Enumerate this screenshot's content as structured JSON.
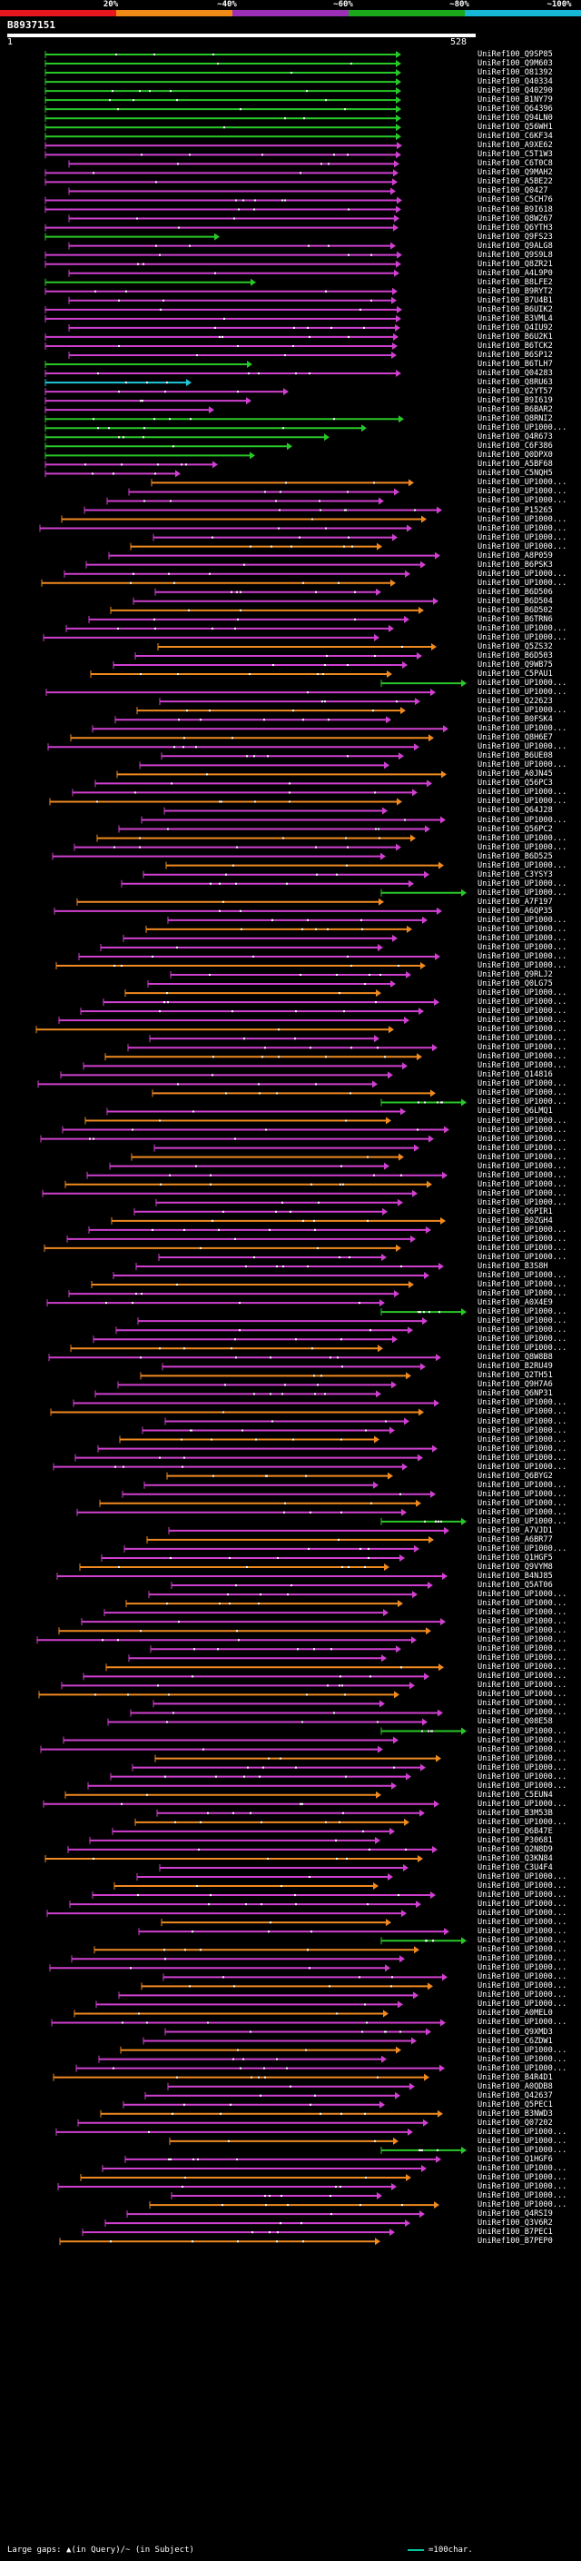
{
  "identity_scale": {
    "labels": [
      "20%",
      "~40%",
      "~60%",
      "~80%",
      "~100%"
    ],
    "segments": [
      {
        "color": "#e8171f",
        "fraction": 0.2
      },
      {
        "color": "#f08a17",
        "fraction": 0.2
      },
      {
        "color": "#9b2fb5",
        "fraction": 0.2
      },
      {
        "color": "#1ba81b",
        "fraction": 0.2
      },
      {
        "color": "#17b8d6",
        "fraction": 0.2
      }
    ]
  },
  "query": {
    "name": "B8937151",
    "start_label": "1",
    "end_label": "528",
    "length": 528
  },
  "colors": {
    "green": "#28c828",
    "magenta": "#d040d0",
    "orange": "#f08a20",
    "cyan": "#20c8d8",
    "marker": "#ffffff",
    "gap": "#808080"
  },
  "hits": [
    "UniRef100_Q9SP85",
    "UniRef100_Q9M603",
    "UniRef100_O81392",
    "UniRef100_Q40334",
    "UniRef100_Q40290",
    "UniRef100_B1NY79",
    "UniRef100_Q64396",
    "UniRef100_Q94LN0",
    "UniRef100_Q56WH1",
    "UniRef100_C6KF34",
    "UniRef100_A9XE62",
    "UniRef100_C5T1W3",
    "UniRef100_C6T0C8",
    "UniRef100_Q9MAH2",
    "UniRef100_A5BE22",
    "UniRef100_Q0427",
    "UniRef100_C5CH76",
    "UniRef100_B9I618",
    "UniRef100_Q8W267",
    "UniRef100_Q6YTH3",
    "UniRef100_Q9FS23",
    "UniRef100_Q9ALG8",
    "UniRef100_Q9S9L8",
    "UniRef100_Q8ZR21",
    "UniRef100_A4L9P0",
    "UniRef100_B8LFE2",
    "UniRef100_B9RYT2",
    "UniRef100_B7U4B1",
    "UniRef100_B6UIK2",
    "UniRef100_B3VML4",
    "UniRef100_Q4IU92",
    "UniRef100_B6U2K1",
    "UniRef100_B6TCK2",
    "UniRef100_B6SP12",
    "UniRef100_B6TLH7",
    "UniRef100_Q04283",
    "UniRef100_Q8RU63",
    "UniRef100_Q2YT57",
    "UniRef100_B9I619",
    "UniRef100_B6BAR2",
    "UniRef100_Q8RNI2",
    "UniRef100_UP1000...",
    "UniRef100_Q4R673",
    "UniRef100_C6F386",
    "UniRef100_Q0DPX0",
    "UniRef100_A5BF68",
    "UniRef100_C5NQH5",
    "UniRef100_UP1000...",
    "UniRef100_UP1000...",
    "UniRef100_UP1000...",
    "UniRef100_P15265",
    "UniRef100_UP1000...",
    "UniRef100_UP1000...",
    "UniRef100_UP1000...",
    "UniRef100_UP1000...",
    "UniRef100_A8P059",
    "UniRef100_B6PSK3",
    "UniRef100_UP1000...",
    "UniRef100_UP1000...",
    "UniRef100_B6D506",
    "UniRef100_B6D504",
    "UniRef100_B6D502",
    "UniRef100_B6TRN6",
    "UniRef100_UP1000...",
    "UniRef100_UP1000...",
    "UniRef100_Q5ZS32",
    "UniRef100_B6D503",
    "UniRef100_Q9WB75",
    "UniRef100_C5PAU1",
    "UniRef100_UP1000...",
    "UniRef100_UP1000...",
    "UniRef100_Q22623",
    "UniRef100_UP1000...",
    "UniRef100_B0FSK4",
    "UniRef100_UP1000...",
    "UniRef100_Q8H6E7",
    "UniRef100_UP1000...",
    "UniRef100_B6UE08",
    "UniRef100_UP1000...",
    "UniRef100_A0JN45",
    "UniRef100_Q56PC3",
    "UniRef100_UP1000...",
    "UniRef100_UP1000...",
    "UniRef100_Q64J28",
    "UniRef100_UP1000...",
    "UniRef100_Q56PC2",
    "UniRef100_UP1000...",
    "UniRef100_UP1000...",
    "UniRef100_B6D525",
    "UniRef100_UP1000...",
    "UniRef100_C3YSY3",
    "UniRef100_UP1000...",
    "UniRef100_UP1000...",
    "UniRef100_A7F197",
    "UniRef100_A6QP35",
    "UniRef100_UP1000...",
    "UniRef100_UP1000...",
    "UniRef100_UP1000...",
    "UniRef100_UP1000...",
    "UniRef100_UP1000...",
    "UniRef100_UP1000...",
    "UniRef100_Q9RLJ2",
    "UniRef100_Q0LG75",
    "UniRef100_UP1000...",
    "UniRef100_UP1000...",
    "UniRef100_UP1000...",
    "UniRef100_UP1000...",
    "UniRef100_UP1000...",
    "UniRef100_UP1000...",
    "UniRef100_UP1000...",
    "UniRef100_UP1000...",
    "UniRef100_UP1000...",
    "UniRef100_Q14816",
    "UniRef100_UP1000...",
    "UniRef100_UP1000...",
    "UniRef100_UP1000...",
    "UniRef100_Q6LMQ1",
    "UniRef100_UP1000...",
    "UniRef100_UP1000...",
    "UniRef100_UP1000...",
    "UniRef100_UP1000...",
    "UniRef100_UP1000...",
    "UniRef100_UP1000...",
    "UniRef100_UP1000...",
    "UniRef100_UP1000...",
    "UniRef100_UP1000...",
    "UniRef100_UP1000...",
    "UniRef100_Q6PIR1",
    "UniRef100_B0ZGH4",
    "UniRef100_UP1000...",
    "UniRef100_UP1000...",
    "UniRef100_UP1000...",
    "UniRef100_UP1000...",
    "UniRef100_B3S8H",
    "UniRef100_UP1000...",
    "UniRef100_UP1000...",
    "UniRef100_UP1000...",
    "UniRef100_A0X4E9",
    "UniRef100_UP1000...",
    "UniRef100_UP1000...",
    "UniRef100_UP1000...",
    "UniRef100_UP1000...",
    "UniRef100_UP1000...",
    "UniRef100_Q8W8B8",
    "UniRef100_B2RU49",
    "UniRef100_Q2TH51",
    "UniRef100_Q9H7A6",
    "UniRef100_Q6NP31",
    "UniRef100_UP1000...",
    "UniRef100_UP1000...",
    "UniRef100_UP1000...",
    "UniRef100_UP1000...",
    "UniRef100_UP1000...",
    "UniRef100_UP1000...",
    "UniRef100_UP1000...",
    "UniRef100_UP1000...",
    "UniRef100_Q6BYG2",
    "UniRef100_UP1000...",
    "UniRef100_UP1000...",
    "UniRef100_UP1000...",
    "UniRef100_UP1000...",
    "UniRef100_UP1000...",
    "UniRef100_A7VJD1",
    "UniRef100_A6BR77",
    "UniRef100_UP1000...",
    "UniRef100_Q1HGF5",
    "UniRef100_Q9VYM8",
    "UniRef100_B4NJ85",
    "UniRef100_Q5AT06",
    "UniRef100_UP1000...",
    "UniRef100_UP1000...",
    "UniRef100_UP1000...",
    "UniRef100_UP1000...",
    "UniRef100_UP1000...",
    "UniRef100_UP1000...",
    "UniRef100_UP1000...",
    "UniRef100_UP1000...",
    "UniRef100_UP1000...",
    "UniRef100_UP1000...",
    "UniRef100_UP1000...",
    "UniRef100_UP1000...",
    "UniRef100_UP1000...",
    "UniRef100_UP1000...",
    "UniRef100_Q08E58",
    "UniRef100_UP1000...",
    "UniRef100_UP1000...",
    "UniRef100_UP1000...",
    "UniRef100_UP1000...",
    "UniRef100_UP1000...",
    "UniRef100_UP1000...",
    "UniRef100_UP1000...",
    "UniRef100_C5EUN4",
    "UniRef100_UP1000...",
    "UniRef100_B3M53B",
    "UniRef100_UP1000...",
    "UniRef100_Q6B47E",
    "UniRef100_P30681",
    "UniRef100_Q2N8D9",
    "UniRef100_Q3KN84",
    "UniRef100_C3U4F4",
    "UniRef100_UP1000...",
    "UniRef100_UP1000...",
    "UniRef100_UP1000...",
    "UniRef100_UP1000...",
    "UniRef100_UP1000...",
    "UniRef100_UP1000...",
    "UniRef100_UP1000...",
    "UniRef100_UP1000...",
    "UniRef100_UP1000...",
    "UniRef100_UP1000...",
    "UniRef100_UP1000...",
    "UniRef100_UP1000...",
    "UniRef100_UP1000...",
    "UniRef100_UP1000...",
    "UniRef100_UP1000...",
    "UniRef100_A0MEL0",
    "UniRef100_UP1000...",
    "UniRef100_Q9XMD3",
    "UniRef100_C6ZDW1",
    "UniRef100_UP1000...",
    "UniRef100_UP1000...",
    "UniRef100_UP1000...",
    "UniRef100_B4R4D1",
    "UniRef100_A0QDB8",
    "UniRef100_Q42637",
    "UniRef100_Q5PEC1",
    "UniRef100_B3NWD3",
    "UniRef100_Q07202",
    "UniRef100_UP1000...",
    "UniRef100_UP1000...",
    "UniRef100_UP1000...",
    "UniRef100_Q1HGF6",
    "UniRef100_UP1000...",
    "UniRef100_UP1000...",
    "UniRef100_UP1000...",
    "UniRef100_UP1000...",
    "UniRef100_UP1000...",
    "UniRef100_Q4RSI9",
    "UniRef100_Q3V6R2",
    "UniRef100_B7PEC1",
    "UniRef100_B7PEP0"
  ],
  "legend": {
    "text": "Large gaps: ▲(in Query)/~ (in Subject)",
    "scale_text": "=100char."
  }
}
